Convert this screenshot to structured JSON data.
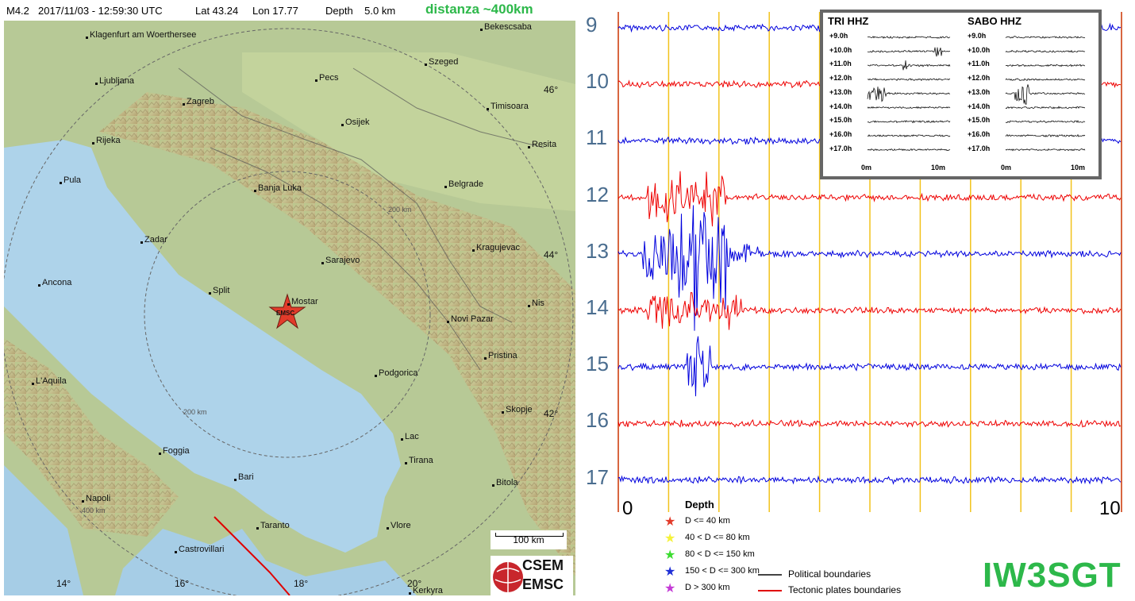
{
  "header": {
    "magnitude": "M4.2",
    "datetime": "2017/11/03 - 12:59:30 UTC",
    "lat": "Lat 43.24",
    "lon": "Lon 17.77",
    "depth": "Depth    5.0 km",
    "distance": "distanza ~400km"
  },
  "map": {
    "cities": [
      {
        "name": "Klagenfurt am Woerthersee"
      },
      {
        "name": "Bekescsaba"
      },
      {
        "name": "Szeged"
      },
      {
        "name": "Ljubljana"
      },
      {
        "name": "Pecs"
      },
      {
        "name": "Zagreb"
      },
      {
        "name": "Osijek"
      },
      {
        "name": "Timisoara"
      },
      {
        "name": "Rijeka"
      },
      {
        "name": "Resita"
      },
      {
        "name": "Pula"
      },
      {
        "name": "Banja Luka"
      },
      {
        "name": "Belgrade"
      },
      {
        "name": "Zadar"
      },
      {
        "name": "Kragujevac"
      },
      {
        "name": "Sarajevo"
      },
      {
        "name": "Ancona"
      },
      {
        "name": "Split"
      },
      {
        "name": "Mostar"
      },
      {
        "name": "Nis"
      },
      {
        "name": "Novi Pazar"
      },
      {
        "name": "Pristina"
      },
      {
        "name": "L'Aquila"
      },
      {
        "name": "Podgorica"
      },
      {
        "name": "Skopje"
      },
      {
        "name": "Lac"
      },
      {
        "name": "Foggia"
      },
      {
        "name": "Tirana"
      },
      {
        "name": "Bari"
      },
      {
        "name": "Bitola"
      },
      {
        "name": "Napoli"
      },
      {
        "name": "Taranto"
      },
      {
        "name": "Vlore"
      },
      {
        "name": "Castrovillari"
      },
      {
        "name": "Kerkyra"
      }
    ],
    "lat_labels": [
      "46°",
      "44°",
      "42°"
    ],
    "lon_labels": [
      "14°",
      "16°",
      "18°",
      "20°"
    ],
    "ring_labels": [
      "200 km",
      "200 km",
      "400 km"
    ],
    "epicenter_label": "EMSC",
    "scale_label": "100 km",
    "logo_top": "CSEM",
    "logo_bottom": "EMSC"
  },
  "seismogram": {
    "hours": [
      "9",
      "10",
      "11",
      "12",
      "13",
      "14",
      "15",
      "16",
      "17"
    ],
    "x_ticks": [
      "0",
      "10"
    ],
    "colors": {
      "odd": "#0000dd",
      "even": "#ee0000",
      "minute_line": "#f2c21b",
      "edge_line": "#cc3300"
    }
  },
  "inset": {
    "stations": [
      {
        "title": "TRI HHZ"
      },
      {
        "title": "SABO HHZ"
      }
    ],
    "rows": [
      "+9.0h",
      "+10.0h",
      "+11.0h",
      "+12.0h",
      "+13.0h",
      "+14.0h",
      "+15.0h",
      "+16.0h",
      "+17.0h"
    ],
    "x_start": "0m",
    "x_end": "10m"
  },
  "legend": {
    "title": "Depth",
    "items": [
      {
        "label": "D <= 40 km",
        "color": "#e23b2a"
      },
      {
        "label": "40 < D <= 80 km",
        "color": "#f5f23a"
      },
      {
        "label": "80 < D <= 150 km",
        "color": "#3bdc2f"
      },
      {
        "label": "150 < D <= 300 km",
        "color": "#1f2fd6"
      },
      {
        "label": "D > 300 km",
        "color": "#c43bd6"
      }
    ],
    "boundaries": [
      {
        "label": "Political boundaries",
        "color": "#444444"
      },
      {
        "label": "Tectonic plates boundaries",
        "color": "#e00000"
      }
    ]
  },
  "callsign": "IW3SGT"
}
